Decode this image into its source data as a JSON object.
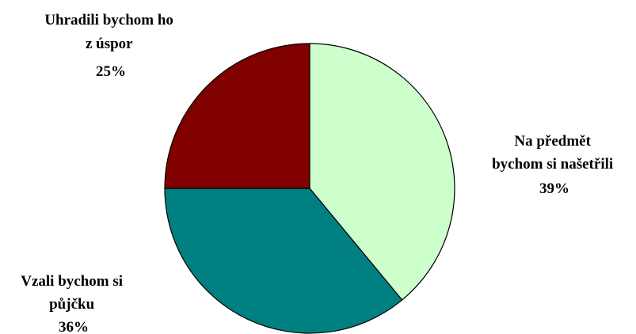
{
  "chart_data": {
    "type": "pie",
    "title": "",
    "slices": [
      {
        "label_lines": [
          "Na předmět",
          "bychom si našetřili"
        ],
        "value": 39,
        "value_label": "39%",
        "color": "#ccffcc"
      },
      {
        "label_lines": [
          "Vzali bychom si",
          "půjčku"
        ],
        "value": 36,
        "value_label": "36%",
        "color": "#008080"
      },
      {
        "label_lines": [
          "Uhradili bychom ho",
          "z úspor"
        ],
        "value": 25,
        "value_label": "25%",
        "color": "#800000"
      }
    ],
    "start_angle": "12 o'clock",
    "direction": "clockwise",
    "legend": "none"
  }
}
